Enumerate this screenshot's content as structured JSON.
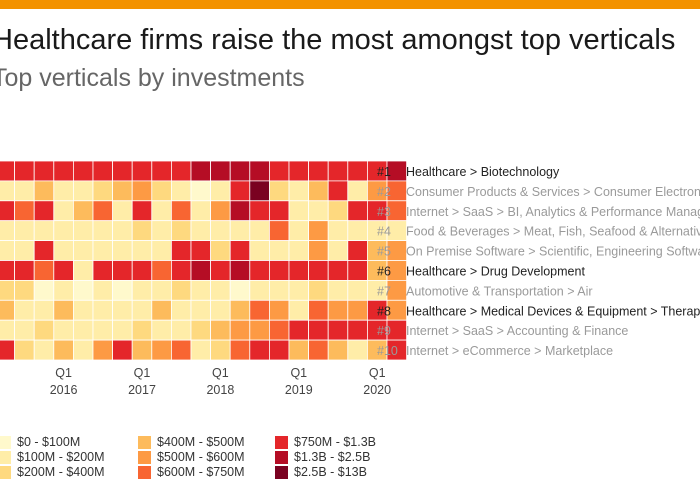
{
  "title": "Healthcare firms raise the most amongst top verticals",
  "subtitle": "Top verticals by investments",
  "accent_color": "#f39200",
  "chart_data": {
    "type": "heatmap",
    "x_ticks": [
      {
        "quarter": "Q1",
        "year": "2016"
      },
      {
        "quarter": "Q1",
        "year": "2017"
      },
      {
        "quarter": "Q1",
        "year": "2018"
      },
      {
        "quarter": "Q1",
        "year": "2019"
      },
      {
        "quarter": "Q1",
        "year": "2020"
      }
    ],
    "rows": [
      {
        "rank": "#1",
        "label": "Healthcare > Biotechnology",
        "highlight": true,
        "values": [
          6,
          6,
          6,
          6,
          6,
          6,
          6,
          6,
          6,
          6,
          7,
          7,
          7,
          7,
          6,
          6,
          6,
          6,
          6,
          6,
          7
        ]
      },
      {
        "rank": "#2",
        "label": "Consumer Products & Services > Consumer Electronics",
        "highlight": false,
        "values": [
          1,
          1,
          3,
          1,
          1,
          2,
          3,
          4,
          2,
          1,
          0,
          1,
          6,
          8,
          2,
          1,
          3,
          6,
          1,
          4,
          5
        ]
      },
      {
        "rank": "#3",
        "label": "Internet > SaaS > BI, Analytics & Performance Management",
        "highlight": false,
        "values": [
          6,
          5,
          6,
          1,
          3,
          5,
          1,
          6,
          1,
          5,
          1,
          4,
          7,
          6,
          6,
          1,
          1,
          2,
          6,
          6,
          5
        ]
      },
      {
        "rank": "#4",
        "label": "Food & Beverages > Meat, Fish, Seafood & Alternatives",
        "highlight": false,
        "values": [
          1,
          1,
          1,
          1,
          1,
          1,
          1,
          2,
          1,
          2,
          1,
          1,
          1,
          1,
          5,
          1,
          4,
          1,
          1,
          1,
          1
        ]
      },
      {
        "rank": "#5",
        "label": "On Premise Software > Scientific, Engineering Software",
        "highlight": false,
        "values": [
          1,
          1,
          6,
          1,
          1,
          1,
          1,
          1,
          1,
          6,
          6,
          2,
          6,
          1,
          1,
          1,
          4,
          1,
          6,
          3,
          4
        ]
      },
      {
        "rank": "#6",
        "label": "Healthcare > Drug Development",
        "highlight": true,
        "values": [
          6,
          6,
          5,
          6,
          1,
          6,
          6,
          6,
          5,
          6,
          7,
          6,
          7,
          6,
          6,
          6,
          6,
          6,
          6,
          3,
          4
        ]
      },
      {
        "rank": "#7",
        "label": "Automotive & Transportation > Air",
        "highlight": false,
        "values": [
          2,
          2,
          0,
          1,
          0,
          1,
          0,
          1,
          1,
          2,
          1,
          1,
          0,
          1,
          1,
          1,
          2,
          1,
          1,
          1,
          4
        ]
      },
      {
        "rank": "#8",
        "label": "Healthcare > Medical Devices & Equipment > Therapeutic Devices",
        "highlight": true,
        "values": [
          3,
          1,
          1,
          3,
          1,
          1,
          1,
          1,
          3,
          1,
          1,
          1,
          3,
          5,
          4,
          1,
          5,
          4,
          4,
          6,
          4
        ]
      },
      {
        "rank": "#9",
        "label": "Internet > SaaS > Accounting & Finance",
        "highlight": false,
        "values": [
          1,
          1,
          2,
          1,
          1,
          1,
          1,
          2,
          1,
          1,
          2,
          3,
          4,
          4,
          5,
          6,
          6,
          6,
          6,
          6,
          6
        ]
      },
      {
        "rank": "#10",
        "label": "Internet > eCommerce > Marketplace",
        "highlight": false,
        "values": [
          6,
          2,
          1,
          3,
          1,
          4,
          6,
          3,
          4,
          5,
          1,
          2,
          5,
          6,
          6,
          3,
          5,
          3,
          1,
          3,
          6
        ]
      }
    ],
    "legend": [
      {
        "label": "$0 - $100M",
        "color": "#fff9cc"
      },
      {
        "label": "$100M - $200M",
        "color": "#ffeda8"
      },
      {
        "label": "$200M - $400M",
        "color": "#fed97f"
      },
      {
        "label": "$400M - $500M",
        "color": "#fdbb5c"
      },
      {
        "label": "$500M - $600M",
        "color": "#fd9a44"
      },
      {
        "label": "$600M - $750M",
        "color": "#f86532"
      },
      {
        "label": "$750M - $1.3B",
        "color": "#e4262a"
      },
      {
        "label": "$1.3B - $2.5B",
        "color": "#b50d25"
      },
      {
        "label": "$2.5B - $13B",
        "color": "#7a0221"
      }
    ]
  }
}
